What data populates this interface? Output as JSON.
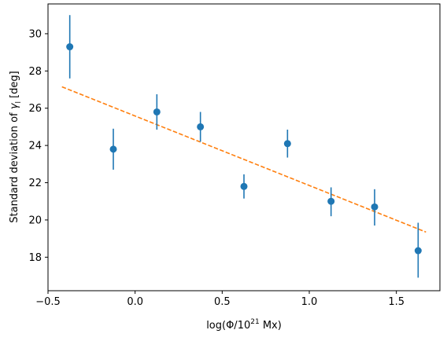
{
  "chart_data": {
    "type": "scatter",
    "title": "",
    "xlabel": {
      "pre": "log(Φ/10",
      "sup": "21",
      "post": " Mx)"
    },
    "ylabel": {
      "pre": "Standard deviation of ",
      "var": "γ",
      "sub": "l",
      "post": " [deg]"
    },
    "xlim": [
      -0.5,
      1.75
    ],
    "ylim": [
      16.2,
      31.6
    ],
    "x_ticks": [
      -0.5,
      0.0,
      0.5,
      1.0,
      1.5
    ],
    "x_tick_labels": [
      "−0.5",
      "0.0",
      "0.5",
      "1.0",
      "1.5"
    ],
    "y_ticks": [
      18,
      20,
      22,
      24,
      26,
      28,
      30
    ],
    "y_tick_labels": [
      "18",
      "20",
      "22",
      "24",
      "26",
      "28",
      "30"
    ],
    "grid": false,
    "series": [
      {
        "color": "#1f77b4",
        "marker": "circle",
        "x": [
          -0.375,
          -0.125,
          0.125,
          0.375,
          0.625,
          0.875,
          1.125,
          1.375,
          1.625
        ],
        "y": [
          29.3,
          23.8,
          25.8,
          25.0,
          21.8,
          24.1,
          21.0,
          20.7,
          18.35
        ],
        "yerr_low": [
          1.7,
          1.1,
          0.95,
          0.8,
          0.65,
          0.75,
          0.8,
          1.0,
          1.45
        ],
        "yerr_high": [
          1.7,
          1.1,
          0.95,
          0.8,
          0.65,
          0.75,
          0.75,
          0.95,
          1.5
        ]
      }
    ],
    "fit_line": {
      "color": "#ff7f0e",
      "style": "dashed",
      "x": [
        -0.42,
        1.67
      ],
      "y": [
        27.15,
        19.35
      ]
    }
  }
}
